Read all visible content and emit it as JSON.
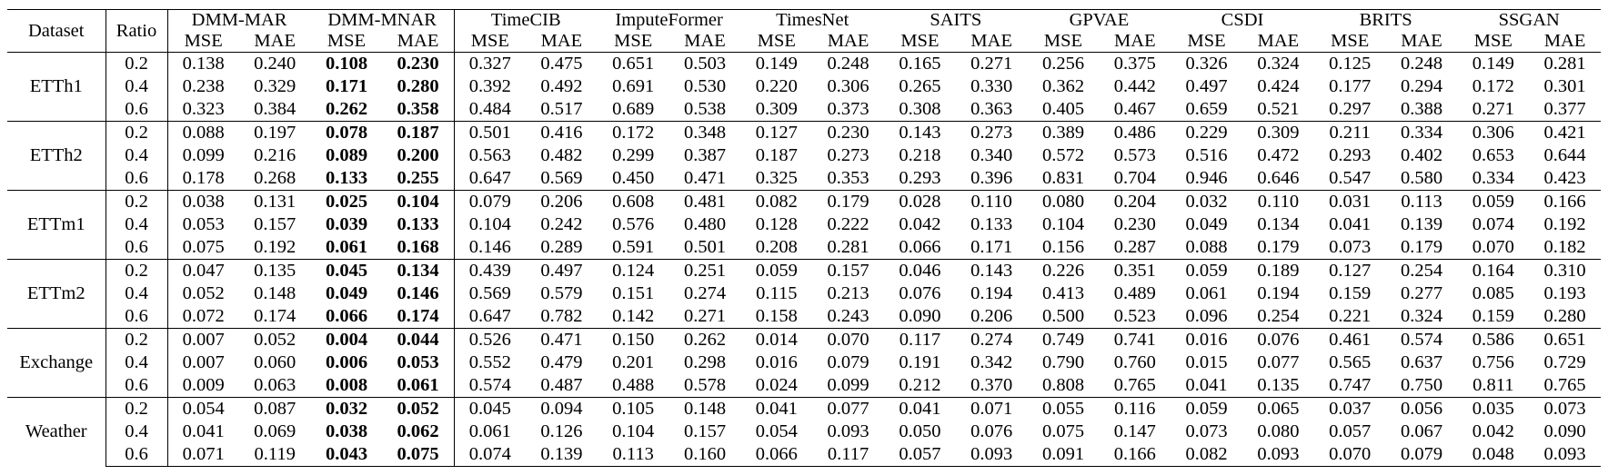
{
  "header": {
    "dataset": "Dataset",
    "ratio": "Ratio",
    "methods": [
      "DMM-MAR",
      "DMM-MNAR",
      "TimeCIB",
      "ImputeFormer",
      "TimesNet",
      "SAITS",
      "GPVAE",
      "CSDI",
      "BRITS",
      "SSGAN"
    ],
    "metrics": [
      "MSE",
      "MAE"
    ]
  },
  "best_method": "DMM-MNAR",
  "rows": [
    {
      "dataset": "ETTh1",
      "groups": [
        {
          "ratio": "0.2",
          "values": [
            "0.138",
            "0.240",
            "0.108",
            "0.230",
            "0.327",
            "0.475",
            "0.651",
            "0.503",
            "0.149",
            "0.248",
            "0.165",
            "0.271",
            "0.256",
            "0.375",
            "0.326",
            "0.324",
            "0.125",
            "0.248",
            "0.149",
            "0.281"
          ]
        },
        {
          "ratio": "0.4",
          "values": [
            "0.238",
            "0.329",
            "0.171",
            "0.280",
            "0.392",
            "0.492",
            "0.691",
            "0.530",
            "0.220",
            "0.306",
            "0.265",
            "0.330",
            "0.362",
            "0.442",
            "0.497",
            "0.424",
            "0.177",
            "0.294",
            "0.172",
            "0.301"
          ]
        },
        {
          "ratio": "0.6",
          "values": [
            "0.323",
            "0.384",
            "0.262",
            "0.358",
            "0.484",
            "0.517",
            "0.689",
            "0.538",
            "0.309",
            "0.373",
            "0.308",
            "0.363",
            "0.405",
            "0.467",
            "0.659",
            "0.521",
            "0.297",
            "0.388",
            "0.271",
            "0.377"
          ]
        }
      ]
    },
    {
      "dataset": "ETTh2",
      "groups": [
        {
          "ratio": "0.2",
          "values": [
            "0.088",
            "0.197",
            "0.078",
            "0.187",
            "0.501",
            "0.416",
            "0.172",
            "0.348",
            "0.127",
            "0.230",
            "0.143",
            "0.273",
            "0.389",
            "0.486",
            "0.229",
            "0.309",
            "0.211",
            "0.334",
            "0.306",
            "0.421"
          ]
        },
        {
          "ratio": "0.4",
          "values": [
            "0.099",
            "0.216",
            "0.089",
            "0.200",
            "0.563",
            "0.482",
            "0.299",
            "0.387",
            "0.187",
            "0.273",
            "0.218",
            "0.340",
            "0.572",
            "0.573",
            "0.516",
            "0.472",
            "0.293",
            "0.402",
            "0.653",
            "0.644"
          ]
        },
        {
          "ratio": "0.6",
          "values": [
            "0.178",
            "0.268",
            "0.133",
            "0.255",
            "0.647",
            "0.569",
            "0.450",
            "0.471",
            "0.325",
            "0.353",
            "0.293",
            "0.396",
            "0.831",
            "0.704",
            "0.946",
            "0.646",
            "0.547",
            "0.580",
            "0.334",
            "0.423"
          ]
        }
      ]
    },
    {
      "dataset": "ETTm1",
      "groups": [
        {
          "ratio": "0.2",
          "values": [
            "0.038",
            "0.131",
            "0.025",
            "0.104",
            "0.079",
            "0.206",
            "0.608",
            "0.481",
            "0.082",
            "0.179",
            "0.028",
            "0.110",
            "0.080",
            "0.204",
            "0.032",
            "0.110",
            "0.031",
            "0.113",
            "0.059",
            "0.166"
          ]
        },
        {
          "ratio": "0.4",
          "values": [
            "0.053",
            "0.157",
            "0.039",
            "0.133",
            "0.104",
            "0.242",
            "0.576",
            "0.480",
            "0.128",
            "0.222",
            "0.042",
            "0.133",
            "0.104",
            "0.230",
            "0.049",
            "0.134",
            "0.041",
            "0.139",
            "0.074",
            "0.192"
          ]
        },
        {
          "ratio": "0.6",
          "values": [
            "0.075",
            "0.192",
            "0.061",
            "0.168",
            "0.146",
            "0.289",
            "0.591",
            "0.501",
            "0.208",
            "0.281",
            "0.066",
            "0.171",
            "0.156",
            "0.287",
            "0.088",
            "0.179",
            "0.073",
            "0.179",
            "0.070",
            "0.182"
          ]
        }
      ]
    },
    {
      "dataset": "ETTm2",
      "groups": [
        {
          "ratio": "0.2",
          "values": [
            "0.047",
            "0.135",
            "0.045",
            "0.134",
            "0.439",
            "0.497",
            "0.124",
            "0.251",
            "0.059",
            "0.157",
            "0.046",
            "0.143",
            "0.226",
            "0.351",
            "0.059",
            "0.189",
            "0.127",
            "0.254",
            "0.164",
            "0.310"
          ]
        },
        {
          "ratio": "0.4",
          "values": [
            "0.052",
            "0.148",
            "0.049",
            "0.146",
            "0.569",
            "0.579",
            "0.151",
            "0.274",
            "0.115",
            "0.213",
            "0.076",
            "0.194",
            "0.413",
            "0.489",
            "0.061",
            "0.194",
            "0.159",
            "0.277",
            "0.085",
            "0.193"
          ]
        },
        {
          "ratio": "0.6",
          "values": [
            "0.072",
            "0.174",
            "0.066",
            "0.174",
            "0.647",
            "0.782",
            "0.142",
            "0.271",
            "0.158",
            "0.243",
            "0.090",
            "0.206",
            "0.500",
            "0.523",
            "0.096",
            "0.254",
            "0.221",
            "0.324",
            "0.159",
            "0.280"
          ]
        }
      ]
    },
    {
      "dataset": "Exchange",
      "groups": [
        {
          "ratio": "0.2",
          "values": [
            "0.007",
            "0.052",
            "0.004",
            "0.044",
            "0.526",
            "0.471",
            "0.150",
            "0.262",
            "0.014",
            "0.070",
            "0.117",
            "0.274",
            "0.749",
            "0.741",
            "0.016",
            "0.076",
            "0.461",
            "0.574",
            "0.586",
            "0.651"
          ]
        },
        {
          "ratio": "0.4",
          "values": [
            "0.007",
            "0.060",
            "0.006",
            "0.053",
            "0.552",
            "0.479",
            "0.201",
            "0.298",
            "0.016",
            "0.079",
            "0.191",
            "0.342",
            "0.790",
            "0.760",
            "0.015",
            "0.077",
            "0.565",
            "0.637",
            "0.756",
            "0.729"
          ]
        },
        {
          "ratio": "0.6",
          "values": [
            "0.009",
            "0.063",
            "0.008",
            "0.061",
            "0.574",
            "0.487",
            "0.488",
            "0.578",
            "0.024",
            "0.099",
            "0.212",
            "0.370",
            "0.808",
            "0.765",
            "0.041",
            "0.135",
            "0.747",
            "0.750",
            "0.811",
            "0.765"
          ]
        }
      ]
    },
    {
      "dataset": "Weather",
      "groups": [
        {
          "ratio": "0.2",
          "values": [
            "0.054",
            "0.087",
            "0.032",
            "0.052",
            "0.045",
            "0.094",
            "0.105",
            "0.148",
            "0.041",
            "0.077",
            "0.041",
            "0.071",
            "0.055",
            "0.116",
            "0.059",
            "0.065",
            "0.037",
            "0.056",
            "0.035",
            "0.073"
          ]
        },
        {
          "ratio": "0.4",
          "values": [
            "0.041",
            "0.069",
            "0.038",
            "0.062",
            "0.061",
            "0.126",
            "0.104",
            "0.157",
            "0.054",
            "0.093",
            "0.050",
            "0.076",
            "0.075",
            "0.147",
            "0.073",
            "0.080",
            "0.057",
            "0.067",
            "0.042",
            "0.090"
          ]
        },
        {
          "ratio": "0.6",
          "values": [
            "0.071",
            "0.119",
            "0.043",
            "0.075",
            "0.074",
            "0.139",
            "0.113",
            "0.160",
            "0.066",
            "0.117",
            "0.057",
            "0.093",
            "0.091",
            "0.166",
            "0.082",
            "0.093",
            "0.070",
            "0.079",
            "0.048",
            "0.093"
          ]
        }
      ]
    }
  ]
}
